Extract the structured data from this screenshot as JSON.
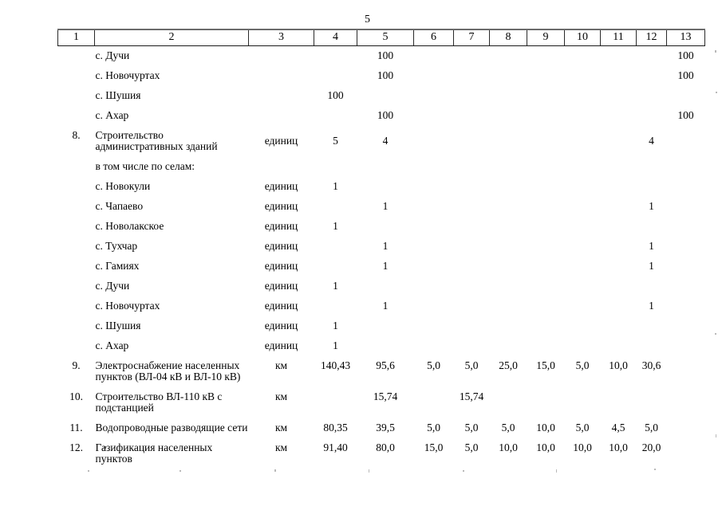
{
  "page": {
    "number": "5"
  },
  "table": {
    "header": [
      "1",
      "2",
      "3",
      "4",
      "5",
      "6",
      "7",
      "8",
      "9",
      "10",
      "11",
      "12",
      "13"
    ],
    "rows": [
      {
        "name": "с. Дучи",
        "c5": "100",
        "c13": "100"
      },
      {
        "name": "с. Новочуртах",
        "c5": "100",
        "c13": "100"
      },
      {
        "name": "с. Шушия",
        "c4": "100"
      },
      {
        "name": "с. Ахар",
        "c5": "100",
        "c13": "100"
      },
      {
        "num": "8.",
        "name": "Строительство",
        "name2": "административных зданий",
        "unit": "единиц",
        "c4": "5",
        "c5": "4",
        "c12": "4",
        "valign": "middle"
      },
      {
        "name": "в том числе по селам:"
      },
      {
        "name": "с. Новокули",
        "unit": "единиц",
        "c4": "1"
      },
      {
        "name": "с. Чапаево",
        "unit": "единиц",
        "c5": "1",
        "c12": "1"
      },
      {
        "name": "с. Новолакское",
        "unit": "единиц",
        "c4": "1"
      },
      {
        "name": "с. Тухчар",
        "unit": "единиц",
        "c5": "1",
        "c12": "1"
      },
      {
        "name": "с. Гамиях",
        "unit": "единиц",
        "c5": "1",
        "c12": "1"
      },
      {
        "name": "с. Дучи",
        "unit": "единиц",
        "c4": "1"
      },
      {
        "name": "с. Новочуртах",
        "unit": "единиц",
        "c5": "1",
        "c12": "1"
      },
      {
        "name": "с. Шушия",
        "unit": "единиц",
        "c4": "1"
      },
      {
        "name": "с. Ахар",
        "unit": "единиц",
        "c4": "1"
      },
      {
        "num": "9.",
        "name": "Электроснабжение населенных",
        "name2": "пунктов (ВЛ-04 кВ и ВЛ-10 кВ)",
        "unit": "км",
        "c4": "140,43",
        "c5": "95,6",
        "c6": "5,0",
        "c7": "5,0",
        "c8": "25,0",
        "c9": "15,0",
        "c10": "5,0",
        "c11": "10,0",
        "c12": "30,6"
      },
      {
        "num": "10.",
        "name": "Строительство ВЛ-110 кВ с",
        "name2": "подстанцией",
        "unit": "км",
        "c5": "15,74",
        "c7": "15,74"
      },
      {
        "num": "11.",
        "name": "Водопроводные разводящие сети",
        "unit": "км",
        "c4": "80,35",
        "c5": "39,5",
        "c6": "5,0",
        "c7": "5,0",
        "c8": "5,0",
        "c9": "10,0",
        "c10": "5,0",
        "c11": "4,5",
        "c12": "5,0"
      },
      {
        "num": "12.",
        "name": "Газификация населенных",
        "name2": "пунктов",
        "unit": "км",
        "c4": "91,40",
        "c5": "80,0",
        "c6": "15,0",
        "c7": "5,0",
        "c8": "10,0",
        "c9": "10,0",
        "c10": "10,0",
        "c11": "10,0",
        "c12": "20,0"
      }
    ]
  }
}
